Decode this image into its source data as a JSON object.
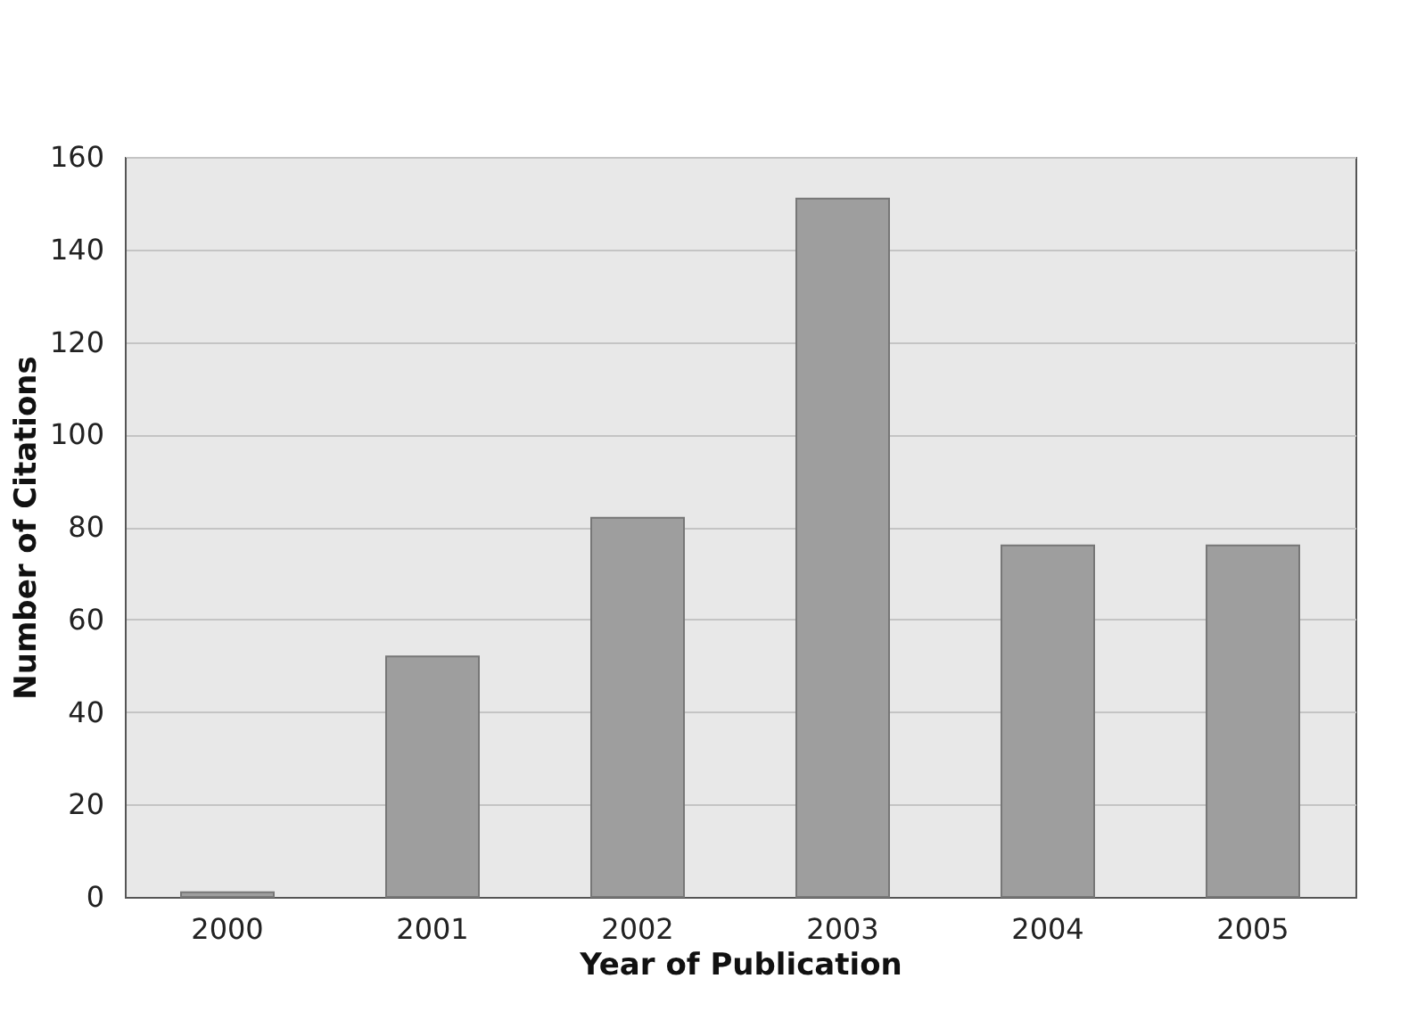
{
  "chart_data": {
    "type": "bar",
    "xlabel": "Year of Publication",
    "ylabel": "Number of Citations",
    "categories": [
      "2000",
      "2001",
      "2002",
      "2003",
      "2004",
      "2005"
    ],
    "values": [
      1,
      52,
      82,
      151,
      76,
      76
    ],
    "color": "#9e9e9e",
    "ylim": [
      0,
      160
    ],
    "yticks": [
      0,
      20,
      40,
      60,
      80,
      100,
      120,
      140,
      160
    ],
    "grid": "y"
  }
}
